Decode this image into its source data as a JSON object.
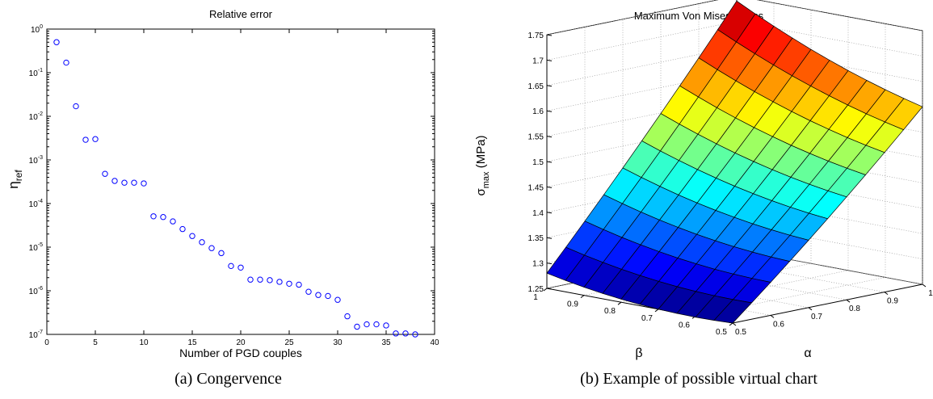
{
  "captions": {
    "a": "(a) Congervence",
    "b": "(b) Example of possible virtual chart"
  },
  "chart_data": [
    {
      "type": "scatter",
      "title": "Relative error",
      "xlabel": "Number of PGD couples",
      "ylabel_base": "η",
      "ylabel_sub": "ref",
      "xlim": [
        0,
        40
      ],
      "ylim": [
        1e-07,
        1
      ],
      "yscale": "log",
      "marker": "circle",
      "color": "#0000ff",
      "grid": false,
      "xticks": [
        "0",
        "5",
        "10",
        "15",
        "20",
        "25",
        "30",
        "35",
        "40"
      ],
      "yticks": [
        {
          "base": "10",
          "exp": "0"
        },
        {
          "base": "10",
          "exp": "-1"
        },
        {
          "base": "10",
          "exp": "-2"
        },
        {
          "base": "10",
          "exp": "-3"
        },
        {
          "base": "10",
          "exp": "-4"
        },
        {
          "base": "10",
          "exp": "-5"
        },
        {
          "base": "10",
          "exp": "-6"
        },
        {
          "base": "10",
          "exp": "-7"
        }
      ],
      "x": [
        1,
        2,
        3,
        4,
        5,
        6,
        7,
        8,
        9,
        10,
        11,
        12,
        13,
        14,
        15,
        16,
        17,
        18,
        19,
        20,
        21,
        22,
        23,
        24,
        25,
        26,
        27,
        28,
        29,
        30,
        31,
        32,
        33,
        34,
        35,
        36,
        37,
        38
      ],
      "y": [
        0.5,
        0.17,
        0.017,
        0.0029,
        0.003,
        0.00048,
        0.00033,
        0.0003,
        0.0003,
        0.00029,
        5.1e-05,
        4.9e-05,
        3.9e-05,
        2.6e-05,
        1.8e-05,
        1.3e-05,
        9.5e-06,
        7.3e-06,
        3.7e-06,
        3.4e-06,
        1.8e-06,
        1.8e-06,
        1.75e-06,
        1.6e-06,
        1.45e-06,
        1.38e-06,
        9.5e-07,
        8e-07,
        7.6e-07,
        6.2e-07,
        2.6e-07,
        1.5e-07,
        1.7e-07,
        1.7e-07,
        1.6e-07,
        1.05e-07,
        1.05e-07,
        1e-07
      ]
    },
    {
      "type": "surface",
      "title": "Maximum Von Mises Stress",
      "xlabel": "β",
      "ylabel": "α",
      "zlabel_base": "σ",
      "zlabel_sub": "max",
      "zlabel_unit": " (MPa)",
      "colormap": "jet",
      "grid": true,
      "xlim": [
        0.5,
        1
      ],
      "ylim": [
        0.5,
        1
      ],
      "zlim": [
        1.25,
        1.75
      ],
      "xticks": [
        "1",
        "0.9",
        "0.8",
        "0.7",
        "0.6",
        "0.5"
      ],
      "yticks": [
        "0.5",
        "0.6",
        "0.7",
        "0.8",
        "0.9",
        "1"
      ],
      "zticks": [
        "1.25",
        "1.3",
        "1.35",
        "1.4",
        "1.45",
        "1.5",
        "1.55",
        "1.6",
        "1.65",
        "1.7",
        "1.75"
      ],
      "grid_points": 10,
      "corner_values": {
        "beta1_alpha05": 1.28,
        "beta05_alpha05": 1.25,
        "beta05_alpha1": 1.6,
        "beta1_alpha1": 1.74
      }
    }
  ]
}
